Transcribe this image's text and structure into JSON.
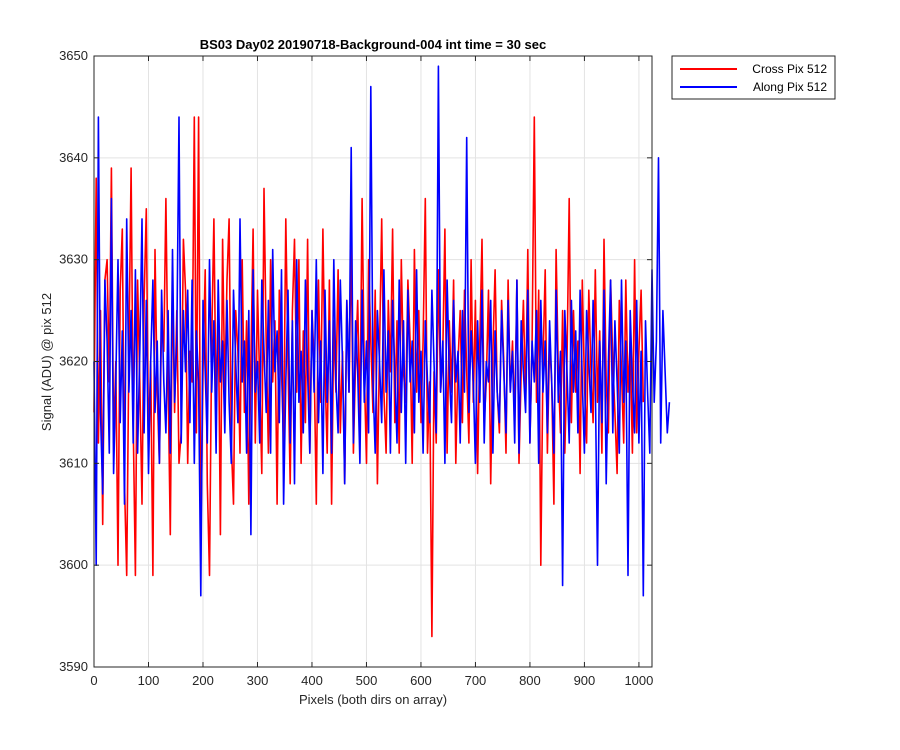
{
  "chart_data": {
    "type": "line",
    "title": "BS03 Day02 20190718-Background-004 int time = 30 sec",
    "xlabel": "Pixels (both dirs on array)",
    "ylabel": "Signal (ADU) @ pix 512",
    "xlim": [
      0,
      1024
    ],
    "ylim": [
      3590,
      3650
    ],
    "xticks": [
      0,
      100,
      200,
      300,
      400,
      500,
      600,
      700,
      800,
      900,
      1000
    ],
    "yticks": [
      3590,
      3600,
      3610,
      3620,
      3630,
      3640,
      3650
    ],
    "grid": true,
    "legend_position": "outside-top-right",
    "series": [
      {
        "name": "Cross Pix 512",
        "color": "#ff0000",
        "x_start": 0,
        "x_step": 4,
        "values": [
          3615,
          3638,
          3612,
          3625,
          3604,
          3628,
          3630,
          3618,
          3639,
          3612,
          3620,
          3600,
          3627,
          3633,
          3608,
          3599,
          3621,
          3639,
          3614,
          3599,
          3628,
          3618,
          3606,
          3626,
          3635,
          3612,
          3620,
          3599,
          3631,
          3617,
          3610,
          3624,
          3621,
          3636,
          3618,
          3603,
          3628,
          3615,
          3625,
          3610,
          3613,
          3632,
          3627,
          3610,
          3621,
          3618,
          3626,
          3613,
          3644,
          3602,
          3619,
          3629,
          3608,
          3599,
          3622,
          3634,
          3615,
          3626,
          3603,
          3632,
          3617,
          3628,
          3634,
          3612,
          3606,
          3625,
          3621,
          3611,
          3630,
          3615,
          3624,
          3606,
          3620,
          3633,
          3612,
          3627,
          3618,
          3609,
          3637,
          3622,
          3611,
          3630,
          3618,
          3624,
          3606,
          3627,
          3619,
          3612,
          3634,
          3620,
          3608,
          3625,
          3632,
          3617,
          3630,
          3610,
          3623,
          3614,
          3632,
          3611,
          3625,
          3620,
          3606,
          3628,
          3616,
          3633,
          3619,
          3611,
          3628,
          3606,
          3624,
          3617,
          3629,
          3613,
          3621,
          3608,
          3626,
          3617,
          3632,
          3611,
          3620,
          3626,
          3614,
          3636,
          3619,
          3610,
          3630,
          3622,
          3615,
          3627,
          3608,
          3621,
          3634,
          3617,
          3611,
          3626,
          3619,
          3633,
          3614,
          3624,
          3611,
          3630,
          3619,
          3616,
          3628,
          3622,
          3610,
          3631,
          3617,
          3625,
          3614,
          3622,
          3636,
          3611,
          3618,
          3628,
          3619,
          3612,
          3629,
          3617,
          3621,
          3633,
          3611,
          3624,
          3617,
          3628,
          3610,
          3620,
          3625,
          3614,
          3627,
          3619,
          3612,
          3630,
          3616,
          3626,
          3609,
          3622,
          3632,
          3614,
          3618,
          3627,
          3608,
          3621,
          3629,
          3617,
          3613,
          3626,
          3620,
          3611,
          3628,
          3617,
          3622,
          3614,
          3628,
          3610,
          3619,
          3626,
          3616,
          3631,
          3612,
          3622,
          3644,
          3616,
          3627,
          3600,
          3620,
          3629,
          3611,
          3622,
          3618,
          3606,
          3631,
          3619,
          3613,
          3625,
          3611,
          3620,
          3636,
          3614,
          3625,
          3617,
          3622,
          3609,
          3628,
          3618,
          3612,
          3627,
          3619,
          3614,
          3629,
          3616,
          3623,
          3611,
          3632,
          3618,
          3613,
          3628,
          3620,
          3615,
          3609,
          3626,
          3619,
          3612,
          3628,
          3617,
          3622,
          3611,
          3630,
          3613,
          3621,
          3627,
          3616
        ],
        "notable": {
          "min": {
            "x": 620,
            "y": 3593
          },
          "max": {
            "x": 185,
            "y": 3644
          }
        }
      },
      {
        "name": "Along Pix 512",
        "color": "#0000ff",
        "x_start": 0,
        "x_step": 4,
        "values": [
          3620,
          3600,
          3644,
          3615,
          3607,
          3628,
          3622,
          3611,
          3636,
          3609,
          3618,
          3630,
          3614,
          3623,
          3606,
          3634,
          3617,
          3625,
          3612,
          3629,
          3611,
          3621,
          3634,
          3613,
          3626,
          3609,
          3620,
          3628,
          3615,
          3622,
          3610,
          3627,
          3618,
          3613,
          3625,
          3611,
          3631,
          3616,
          3622,
          3644,
          3612,
          3625,
          3619,
          3627,
          3614,
          3628,
          3610,
          3623,
          3618,
          3597,
          3626,
          3619,
          3612,
          3630,
          3617,
          3624,
          3611,
          3628,
          3618,
          3622,
          3613,
          3626,
          3616,
          3610,
          3627,
          3620,
          3614,
          3634,
          3618,
          3622,
          3611,
          3625,
          3603,
          3629,
          3617,
          3620,
          3612,
          3628,
          3621,
          3615,
          3626,
          3611,
          3631,
          3619,
          3623,
          3614,
          3629,
          3606,
          3618,
          3627,
          3612,
          3624,
          3608,
          3630,
          3616,
          3621,
          3613,
          3628,
          3619,
          3611,
          3625,
          3617,
          3630,
          3614,
          3622,
          3609,
          3627,
          3616,
          3624,
          3611,
          3630,
          3618,
          3613,
          3628,
          3620,
          3608,
          3626,
          3617,
          3641,
          3612,
          3624,
          3619,
          3610,
          3627,
          3616,
          3622,
          3613,
          3647,
          3618,
          3611,
          3625,
          3620,
          3614,
          3629,
          3617,
          3623,
          3611,
          3626,
          3619,
          3612,
          3628,
          3615,
          3624,
          3610,
          3627,
          3618,
          3622,
          3613,
          3629,
          3616,
          3621,
          3611,
          3624,
          3618,
          3614,
          3627,
          3620,
          3613,
          3649,
          3617,
          3622,
          3610,
          3628,
          3619,
          3614,
          3626,
          3618,
          3621,
          3612,
          3625,
          3617,
          3642,
          3615,
          3623,
          3618,
          3610,
          3624,
          3616,
          3627,
          3612,
          3620,
          3618,
          3626,
          3611,
          3623,
          3617,
          3614,
          3625,
          3619,
          3613,
          3626,
          3617,
          3621,
          3612,
          3628,
          3611,
          3624,
          3619,
          3615,
          3627,
          3612,
          3622,
          3618,
          3625,
          3610,
          3626,
          3617,
          3622,
          3613,
          3624,
          3618,
          3611,
          3627,
          3616,
          3621,
          3598,
          3625,
          3619,
          3612,
          3626,
          3617,
          3623,
          3613,
          3627,
          3618,
          3611,
          3625,
          3620,
          3615,
          3626,
          3618,
          3600,
          3622,
          3614,
          3627,
          3608,
          3620,
          3628,
          3613,
          3624,
          3618,
          3611,
          3628,
          3616,
          3622,
          3599,
          3625,
          3618,
          3613,
          3626,
          3612,
          3621,
          3597,
          3624,
          3617,
          3611,
          3629,
          3616,
          3622,
          3640,
          3612,
          3625,
          3619,
          3613,
          3616
        ]
      }
    ]
  }
}
